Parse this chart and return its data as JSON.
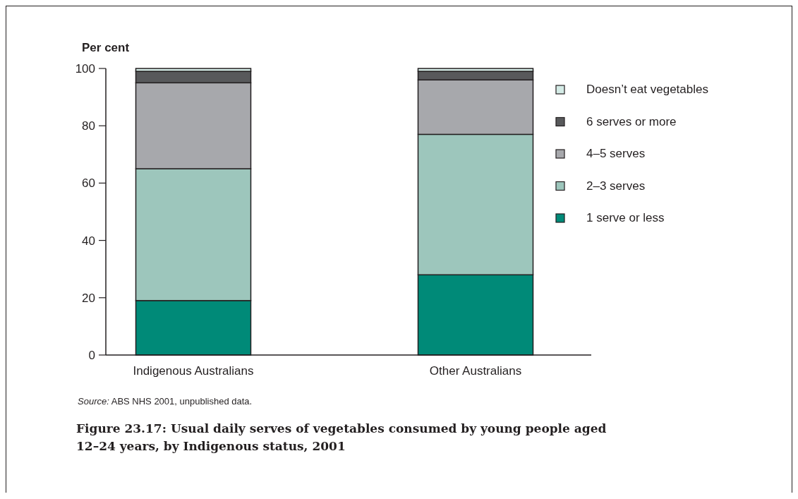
{
  "chart_data": {
    "type": "bar",
    "stacked": true,
    "title": "Figure 23.17: Usual daily serves of vegetables consumed by young people aged 12–24 years, by Indigenous status, 2001",
    "ylabel": "Per cent",
    "categories": [
      "Indigenous Australians",
      "Other Australians"
    ],
    "series": [
      {
        "name": "1 serve or less",
        "color": "#008a78",
        "values": [
          19,
          28
        ]
      },
      {
        "name": "2–3 serves",
        "color": "#9dc6bc",
        "values": [
          46,
          49
        ]
      },
      {
        "name": "4–5 serves",
        "color": "#a7a8ac",
        "values": [
          30,
          19
        ]
      },
      {
        "name": "6 serves or more",
        "color": "#58595b",
        "values": [
          4,
          3
        ]
      },
      {
        "name": "Doesn’t eat vegetables",
        "color": "#d4ebe6",
        "values": [
          1,
          1
        ]
      }
    ],
    "ylim": [
      0,
      100
    ],
    "yticks": [
      0,
      20,
      40,
      60,
      80,
      100
    ],
    "grid": false,
    "legend": "right",
    "annotations": [
      "Source: ABS NHS 2001, unpublished data."
    ]
  }
}
